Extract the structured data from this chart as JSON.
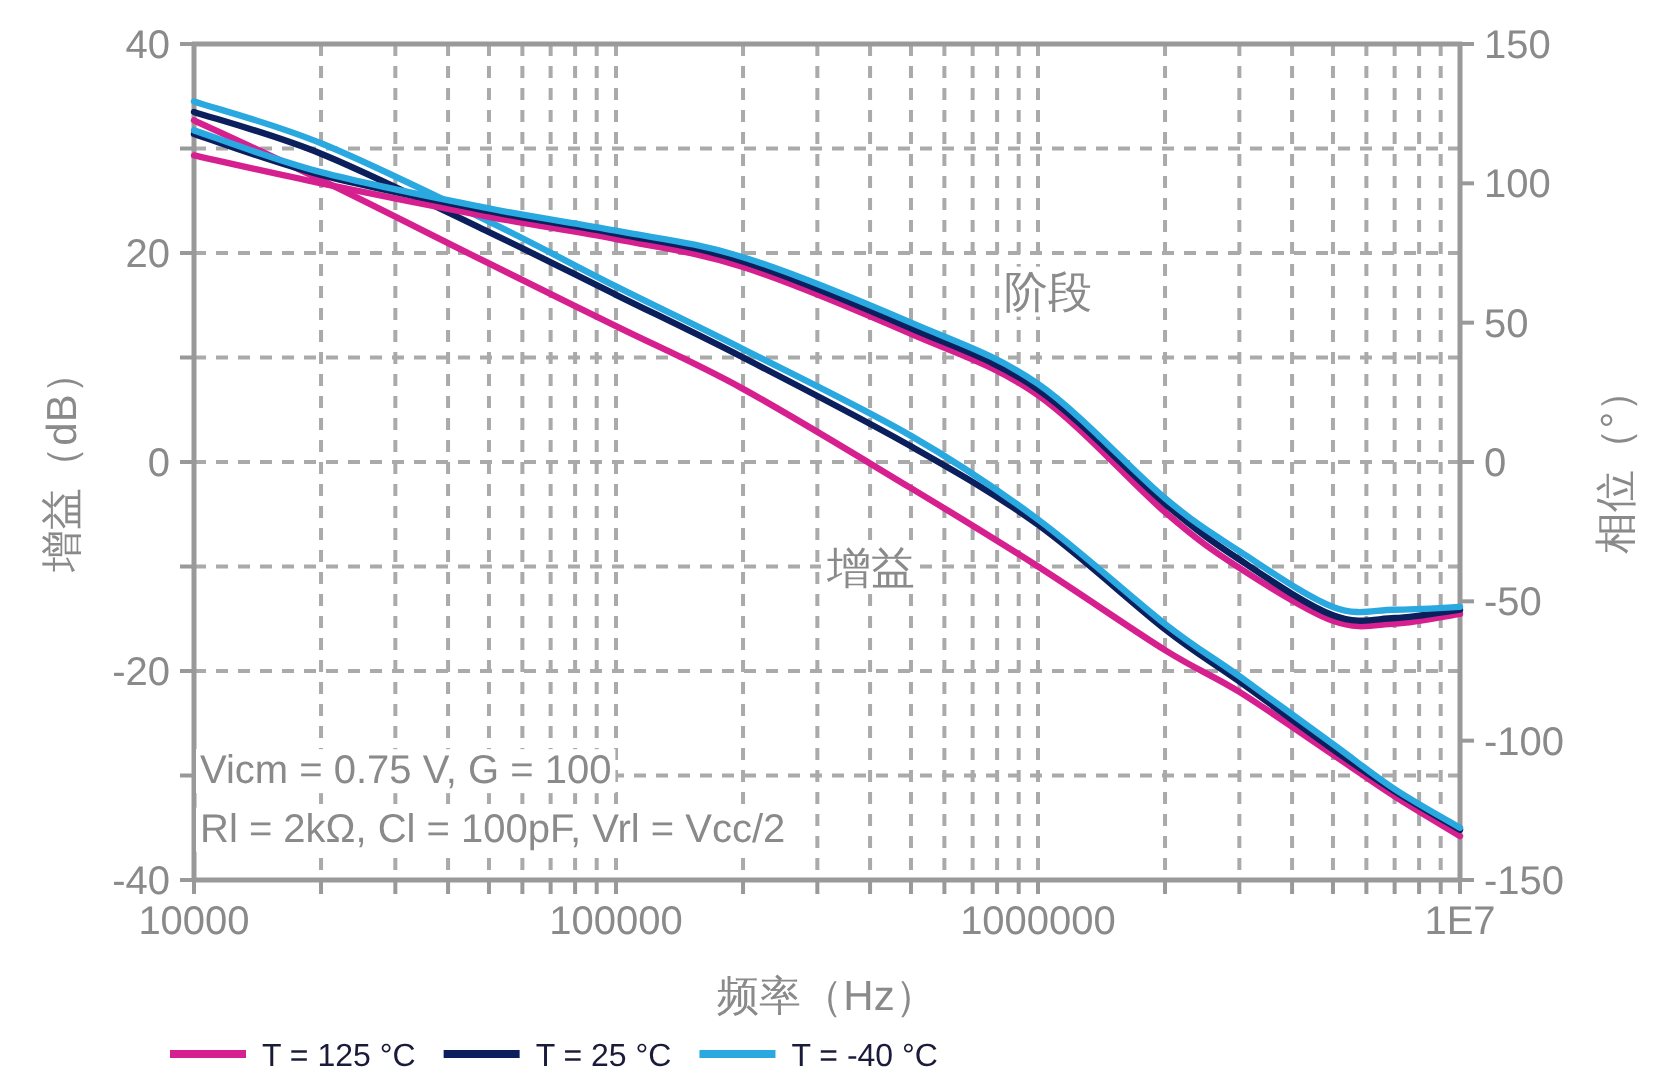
{
  "chart_data": {
    "type": "line",
    "xlabel": "频率（Hz）",
    "ylabel": "增益（dB）",
    "y2label": "相位（°）",
    "log": "x",
    "grid": true,
    "legend": "bottom",
    "x": [
      10000,
      20000,
      50000,
      100000,
      200000,
      500000,
      1000000,
      2000000,
      3000000,
      5000000,
      7000000,
      10000000
    ],
    "xlim": [
      10000,
      10000000
    ],
    "xticks": [
      {
        "value": 10000,
        "label": "10000"
      },
      {
        "value": 20000,
        "label": null
      },
      {
        "value": 30000,
        "label": null
      },
      {
        "value": 40000,
        "label": null
      },
      {
        "value": 50000,
        "label": null
      },
      {
        "value": 60000,
        "label": null
      },
      {
        "value": 70000,
        "label": null
      },
      {
        "value": 80000,
        "label": null
      },
      {
        "value": 90000,
        "label": null
      },
      {
        "value": 100000,
        "label": "100000"
      },
      {
        "value": 200000,
        "label": null
      },
      {
        "value": 300000,
        "label": null
      },
      {
        "value": 400000,
        "label": null
      },
      {
        "value": 500000,
        "label": null
      },
      {
        "value": 600000,
        "label": null
      },
      {
        "value": 700000,
        "label": null
      },
      {
        "value": 800000,
        "label": null
      },
      {
        "value": 900000,
        "label": null
      },
      {
        "value": 1000000,
        "label": "1000000"
      },
      {
        "value": 2000000,
        "label": null
      },
      {
        "value": 3000000,
        "label": null
      },
      {
        "value": 4000000,
        "label": null
      },
      {
        "value": 5000000,
        "label": null
      },
      {
        "value": 6000000,
        "label": null
      },
      {
        "value": 7000000,
        "label": null
      },
      {
        "value": 8000000,
        "label": null
      },
      {
        "value": 9000000,
        "label": null
      },
      {
        "value": 10000000,
        "label": "1E7"
      }
    ],
    "ylim": [
      -40,
      40
    ],
    "yticks": [
      -40,
      {
        "value": -30,
        "label": null
      },
      -20,
      {
        "value": -10,
        "label": null
      },
      0,
      {
        "value": 10,
        "label": null
      },
      20,
      {
        "value": 30,
        "label": null
      },
      40
    ],
    "y2lim": [
      -150,
      150
    ],
    "y2ticks": [
      -150,
      -100,
      -50,
      0,
      50,
      100,
      150
    ],
    "series": [
      {
        "name": "T = 125 °C",
        "color": "#d6208f",
        "values": [
          32.7,
          27,
          19,
          13,
          7,
          -2.5,
          -10,
          -18,
          -22,
          -28,
          -32,
          -35.8
        ]
      },
      {
        "name": "T = 25 °C",
        "color": "#0b1f5c",
        "values": [
          33.5,
          29.5,
          22,
          16,
          10,
          1.5,
          -6,
          -16,
          -21,
          -27.5,
          -31.5,
          -35.2
        ]
      },
      {
        "name": "T = -40 °C",
        "color": "#2aa8e0",
        "values": [
          34.5,
          30.5,
          23,
          16.8,
          10.8,
          2.5,
          -5.5,
          -15.5,
          -20.5,
          -27,
          -31.3,
          -35
        ]
      },
      {
        "color": "#d6208f",
        "axis": "y2",
        "values": [
          110,
          100,
          88,
          80,
          70,
          46,
          24,
          -18,
          -38,
          -57,
          -58,
          -54.5
        ]
      },
      {
        "color": "#0b1f5c",
        "axis": "y2",
        "values": [
          117.7,
          103,
          90,
          82,
          72,
          48,
          26,
          -15,
          -35,
          -55,
          -56,
          -53
        ]
      },
      {
        "color": "#2aa8e0",
        "axis": "y2",
        "values": [
          119,
          104,
          91,
          83,
          73.5,
          50,
          28,
          -13,
          -32,
          -52,
          -53,
          -52
        ]
      }
    ],
    "annotations": [
      "阶段",
      "增益",
      "Vicm = 0.75 V, G = 100",
      "Rl = 2kΩ, Cl = 100pF, Vrl = Vcc/2"
    ]
  }
}
